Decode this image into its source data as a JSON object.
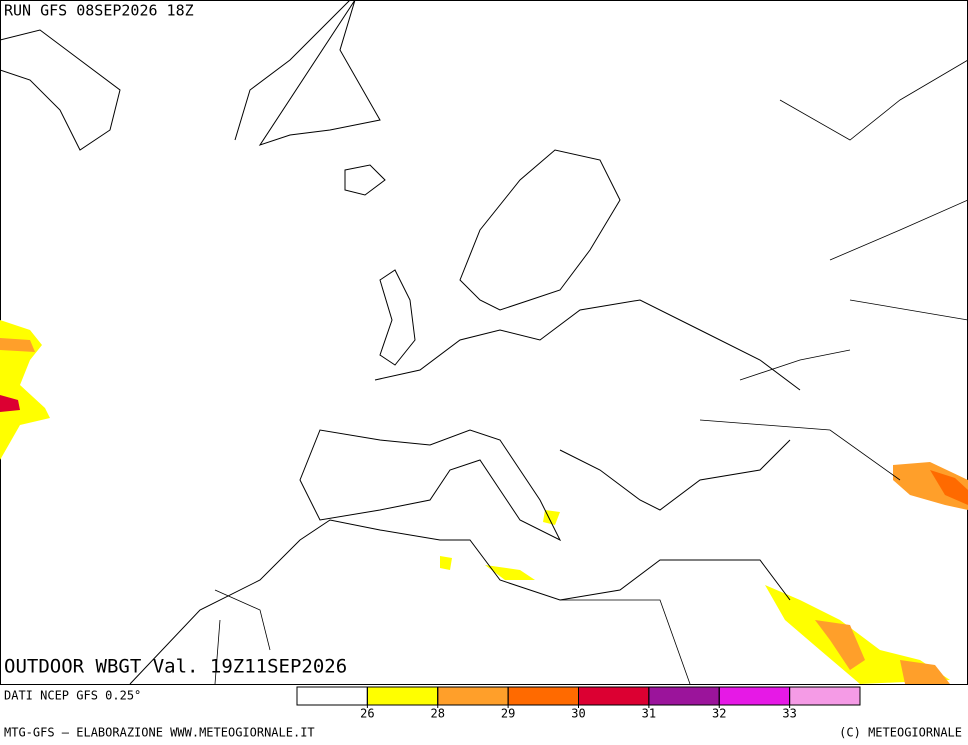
{
  "header": {
    "run": "RUN GFS 08SEP2026 18Z"
  },
  "map": {
    "title": "OUTDOOR WBGT Val. 19Z11SEP2026"
  },
  "legend": {
    "source": "DATI NCEP GFS 0.25°",
    "colors": [
      "#ffffff",
      "#ffff00",
      "#ff9f2a",
      "#ff6a00",
      "#dc0032",
      "#9b149b",
      "#e619e6",
      "#f59be6"
    ],
    "ticks": [
      26,
      28,
      29,
      30,
      31,
      32,
      33
    ]
  },
  "footer": {
    "left": "MTG-GFS — ELABORAZIONE WWW.METEOGIORNALE.IT",
    "right": "(C) METEOGIORNALE"
  }
}
